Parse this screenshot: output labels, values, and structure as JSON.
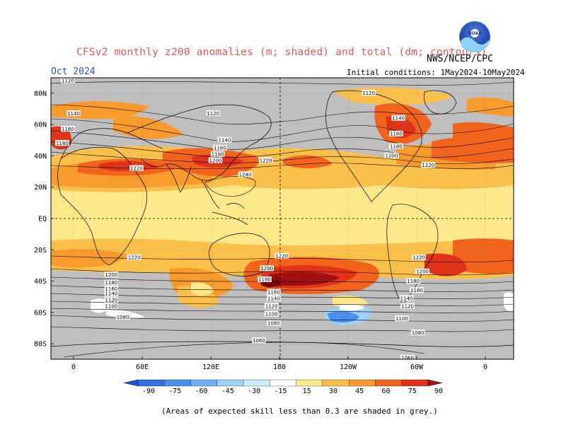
{
  "title": "CFSv2 monthly z200 anomalies (m; shaded) and total (dm; contours)",
  "agency": "NWS/NCEP/CPC",
  "valid_month": "Oct 2024",
  "initial_conditions": "Initial conditions: 1May2024-10May2024",
  "footnote": "(Areas of expected skill less than 0.3 are shaded in grey.)",
  "logo": {
    "text": "NOAA",
    "icon": "noaa-logo-icon"
  },
  "map": {
    "lat_labels": [
      "80N",
      "60N",
      "40N",
      "20N",
      "EQ",
      "20S",
      "40S",
      "60S",
      "80S"
    ],
    "lon_labels": [
      "0",
      "60E",
      "120E",
      "180",
      "120W",
      "60W",
      "0"
    ],
    "contour_labels": [
      {
        "text": "1120",
        "lon": -5,
        "lat": 88
      },
      {
        "text": "1140",
        "lon": 0,
        "lat": 67
      },
      {
        "text": "1160",
        "lon": -5,
        "lat": 57
      },
      {
        "text": "1180",
        "lon": -10,
        "lat": 48
      },
      {
        "text": "1120",
        "lon": 122,
        "lat": 67
      },
      {
        "text": "1140",
        "lon": 132,
        "lat": 50
      },
      {
        "text": "1160",
        "lon": 128,
        "lat": 45
      },
      {
        "text": "1180",
        "lon": 126,
        "lat": 41
      },
      {
        "text": "1200",
        "lon": 124,
        "lat": 37
      },
      {
        "text": "1220",
        "lon": 55,
        "lat": 32
      },
      {
        "text": "1220",
        "lon": 168,
        "lat": 37
      },
      {
        "text": "1240",
        "lon": 150,
        "lat": 28
      },
      {
        "text": "1120",
        "lon": 258,
        "lat": 80
      },
      {
        "text": "1140",
        "lon": 284,
        "lat": 64
      },
      {
        "text": "1160",
        "lon": 282,
        "lat": 54
      },
      {
        "text": "1180",
        "lon": 282,
        "lat": 46
      },
      {
        "text": "1200",
        "lon": 278,
        "lat": 40
      },
      {
        "text": "1220",
        "lon": 310,
        "lat": 34
      },
      {
        "text": "1220",
        "lon": 53,
        "lat": -25
      },
      {
        "text": "1220",
        "lon": 182,
        "lat": -24
      },
      {
        "text": "1220",
        "lon": 302,
        "lat": -25
      },
      {
        "text": "1200",
        "lon": 33,
        "lat": -36
      },
      {
        "text": "1180",
        "lon": 33,
        "lat": -41
      },
      {
        "text": "1160",
        "lon": 33,
        "lat": -45
      },
      {
        "text": "1140",
        "lon": 33,
        "lat": -48
      },
      {
        "text": "1120",
        "lon": 33,
        "lat": -52
      },
      {
        "text": "1100",
        "lon": 33,
        "lat": -56
      },
      {
        "text": "1080",
        "lon": 43,
        "lat": -63
      },
      {
        "text": "1200",
        "lon": 169,
        "lat": -32
      },
      {
        "text": "1180",
        "lon": 167,
        "lat": -39
      },
      {
        "text": "1160",
        "lon": 175,
        "lat": -47
      },
      {
        "text": "1140",
        "lon": 175,
        "lat": -51
      },
      {
        "text": "1120",
        "lon": 173,
        "lat": -56
      },
      {
        "text": "1100",
        "lon": 173,
        "lat": -61
      },
      {
        "text": "1080",
        "lon": 175,
        "lat": -67
      },
      {
        "text": "1060",
        "lon": 162,
        "lat": -78
      },
      {
        "text": "1200",
        "lon": 305,
        "lat": -34
      },
      {
        "text": "1180",
        "lon": 297,
        "lat": -40
      },
      {
        "text": "1180",
        "lon": 300,
        "lat": -46
      },
      {
        "text": "1140",
        "lon": 291,
        "lat": -51
      },
      {
        "text": "1120",
        "lon": 292,
        "lat": -56
      },
      {
        "text": "1100",
        "lon": 287,
        "lat": -64
      },
      {
        "text": "1080",
        "lon": 301,
        "lat": -73
      },
      {
        "text": "1060",
        "lon": 292,
        "lat": -89
      }
    ]
  },
  "colorbar": {
    "labels": [
      "-90",
      "-75",
      "-60",
      "-45",
      "-30",
      "-15",
      "15",
      "30",
      "45",
      "60",
      "75",
      "90"
    ],
    "colors": [
      "#1e4fd8",
      "#2f6fe6",
      "#4a90ee",
      "#6fb0f4",
      "#9dd2f9",
      "#c9ebfc",
      "#ffffff",
      "#fde98a",
      "#fbc04a",
      "#f89a2c",
      "#f2631c",
      "#e1331a",
      "#a01010"
    ]
  }
}
